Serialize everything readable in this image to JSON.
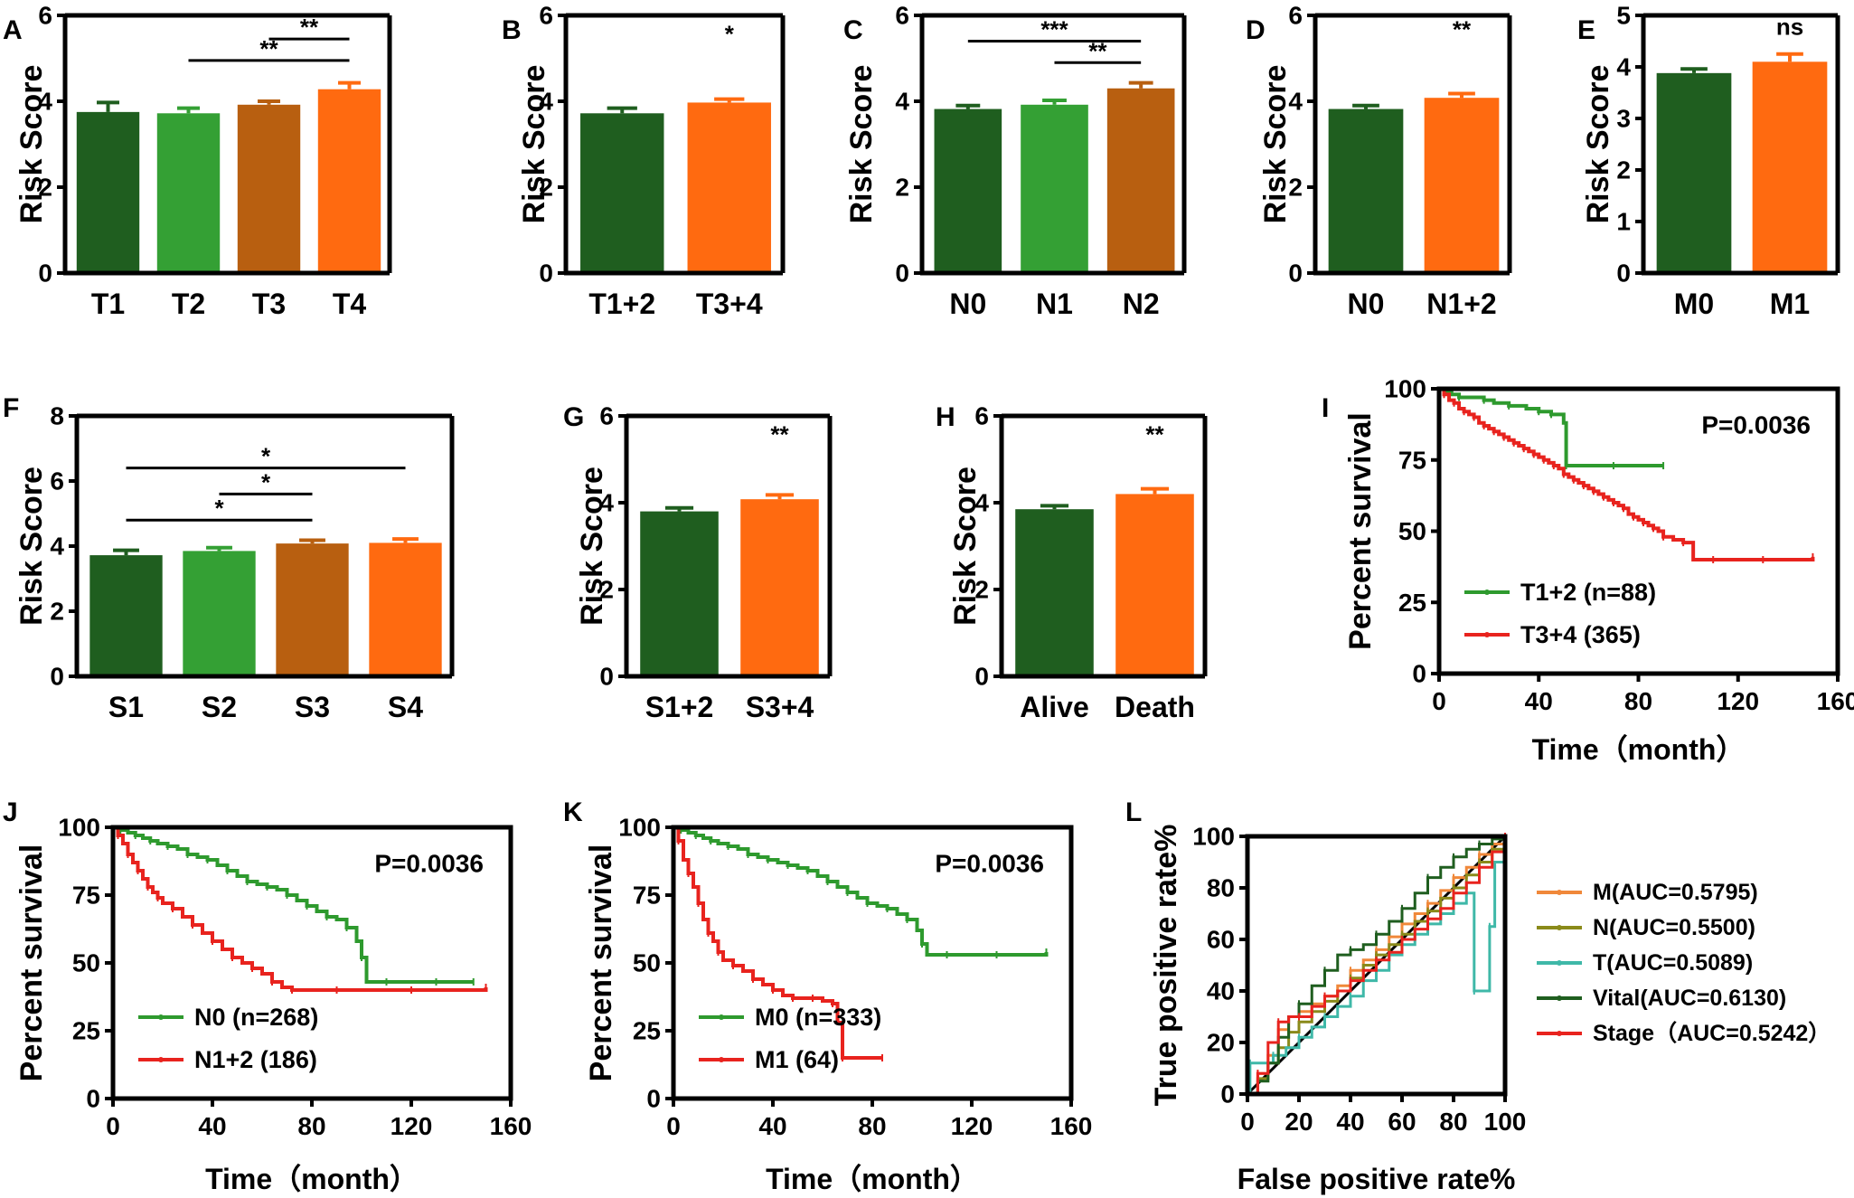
{
  "chart_data": [
    {
      "id": "A",
      "type": "bar",
      "ylabel": "Risk Score",
      "ylim": [
        0,
        6
      ],
      "yticks": [
        0,
        2,
        4,
        6
      ],
      "categories": [
        "T1",
        "T2",
        "T3",
        "T4"
      ],
      "values": [
        3.75,
        3.72,
        3.92,
        4.28
      ],
      "errors": [
        0.22,
        0.12,
        0.08,
        0.15
      ],
      "colors": [
        "#1f5e1f",
        "#34a034",
        "#b85f10",
        "#ff6a10"
      ],
      "sig": [
        {
          "from": 1,
          "to": 3,
          "label": "**",
          "level": 4.95
        },
        {
          "from": 2,
          "to": 3,
          "label": "**",
          "level": 5.45
        }
      ]
    },
    {
      "id": "B",
      "type": "bar",
      "ylabel": "Risk Score",
      "ylim": [
        0,
        6
      ],
      "yticks": [
        0,
        2,
        4,
        6
      ],
      "categories": [
        "T1+2",
        "T3+4"
      ],
      "values": [
        3.72,
        3.97
      ],
      "errors": [
        0.12,
        0.08
      ],
      "colors": [
        "#1f5e1f",
        "#ff6a10"
      ],
      "sig": [
        {
          "from": 1,
          "to": 1,
          "label": "*",
          "level": 5.3,
          "noline": true
        }
      ]
    },
    {
      "id": "C",
      "type": "bar",
      "ylabel": "Risk Score",
      "ylim": [
        0,
        6
      ],
      "yticks": [
        0,
        2,
        4,
        6
      ],
      "categories": [
        "N0",
        "N1",
        "N2"
      ],
      "values": [
        3.82,
        3.92,
        4.3
      ],
      "errors": [
        0.08,
        0.1,
        0.13
      ],
      "colors": [
        "#1f5e1f",
        "#34a034",
        "#b85f10"
      ],
      "sig": [
        {
          "from": 0,
          "to": 2,
          "label": "***",
          "level": 5.4
        },
        {
          "from": 1,
          "to": 2,
          "label": "**",
          "level": 4.9
        }
      ]
    },
    {
      "id": "D",
      "type": "bar",
      "ylabel": "Risk Score",
      "ylim": [
        0,
        6
      ],
      "yticks": [
        0,
        2,
        4,
        6
      ],
      "categories": [
        "N0",
        "N1+2"
      ],
      "values": [
        3.82,
        4.08
      ],
      "errors": [
        0.08,
        0.1
      ],
      "colors": [
        "#1f5e1f",
        "#ff6a10"
      ],
      "sig": [
        {
          "from": 1,
          "to": 1,
          "label": "**",
          "level": 5.4,
          "noline": true
        }
      ]
    },
    {
      "id": "E",
      "type": "bar",
      "ylabel": "Risk Score",
      "ylim": [
        0,
        5
      ],
      "yticks": [
        0,
        1,
        2,
        3,
        4,
        5
      ],
      "categories": [
        "M0",
        "M1"
      ],
      "values": [
        3.88,
        4.1
      ],
      "errors": [
        0.08,
        0.15
      ],
      "colors": [
        "#1f5e1f",
        "#ff6a10"
      ],
      "sig": [
        {
          "from": 1,
          "to": 1,
          "label": "ns",
          "level": 4.55,
          "noline": true
        }
      ]
    },
    {
      "id": "F",
      "type": "bar",
      "ylabel": "Risk Score",
      "ylim": [
        0,
        8
      ],
      "yticks": [
        0,
        2,
        4,
        6,
        8
      ],
      "categories": [
        "S1",
        "S2",
        "S3",
        "S4"
      ],
      "values": [
        3.72,
        3.85,
        4.08,
        4.1
      ],
      "errors": [
        0.15,
        0.1,
        0.1,
        0.12
      ],
      "colors": [
        "#1f5e1f",
        "#34a034",
        "#b85f10",
        "#ff6a10"
      ],
      "sig": [
        {
          "from": 0,
          "to": 3,
          "label": "*",
          "level": 6.4
        },
        {
          "from": 1,
          "to": 2,
          "label": "*",
          "level": 5.6
        },
        {
          "from": 0,
          "to": 2,
          "label": "*",
          "level": 4.8
        }
      ]
    },
    {
      "id": "G",
      "type": "bar",
      "ylabel": "Risk Score",
      "ylim": [
        0,
        6
      ],
      "yticks": [
        0,
        2,
        4,
        6
      ],
      "categories": [
        "S1+2",
        "S3+4"
      ],
      "values": [
        3.8,
        4.08
      ],
      "errors": [
        0.08,
        0.1
      ],
      "colors": [
        "#1f5e1f",
        "#ff6a10"
      ],
      "sig": [
        {
          "from": 1,
          "to": 1,
          "label": "**",
          "level": 5.3,
          "noline": true
        }
      ]
    },
    {
      "id": "H",
      "type": "bar",
      "ylabel": "Risk Score",
      "ylim": [
        0,
        6
      ],
      "yticks": [
        0,
        2,
        4,
        6
      ],
      "categories": [
        "Alive",
        "Death"
      ],
      "values": [
        3.85,
        4.2
      ],
      "errors": [
        0.08,
        0.12
      ],
      "colors": [
        "#1f5e1f",
        "#ff6a10"
      ],
      "sig": [
        {
          "from": 1,
          "to": 1,
          "label": "**",
          "level": 5.3,
          "noline": true
        }
      ]
    },
    {
      "id": "I",
      "type": "line",
      "subtype": "kaplan-meier",
      "ylabel": "Percent survival",
      "xlabel": "Time（month）",
      "xlim": [
        0,
        160
      ],
      "ylim": [
        0,
        100
      ],
      "xticks": [
        0,
        40,
        80,
        120,
        160
      ],
      "yticks": [
        0,
        25,
        50,
        75,
        100
      ],
      "pvalue": "P=0.0036",
      "series": [
        {
          "name": "T1+2 (n=88)",
          "color": "#2e9a2e",
          "times": [
            0,
            2,
            5,
            8,
            12,
            18,
            22,
            28,
            35,
            40,
            42,
            45,
            50,
            51,
            60,
            70,
            80,
            90
          ],
          "survival": [
            100,
            99,
            98,
            97,
            97,
            96,
            95,
            94,
            93,
            92,
            92,
            91,
            88,
            73,
            73,
            73,
            73,
            73
          ]
        },
        {
          "name": "T3+4 (365)",
          "color": "#e8231e",
          "times": [
            0,
            2,
            4,
            6,
            8,
            10,
            12,
            14,
            16,
            18,
            20,
            22,
            24,
            26,
            28,
            30,
            32,
            34,
            36,
            38,
            40,
            42,
            44,
            46,
            48,
            50,
            52,
            54,
            56,
            58,
            60,
            62,
            64,
            66,
            68,
            70,
            72,
            74,
            76,
            78,
            80,
            82,
            84,
            86,
            88,
            90,
            94,
            98,
            102,
            110,
            120,
            130,
            140,
            150
          ],
          "survival": [
            100,
            98,
            96,
            95,
            93,
            92,
            91,
            90,
            88,
            87,
            86,
            85,
            84,
            83,
            82,
            81,
            80,
            79,
            78,
            77,
            76,
            75,
            74,
            73,
            72,
            70,
            69,
            68,
            67,
            66,
            65,
            64,
            63,
            62,
            61,
            60,
            59,
            58,
            56,
            55,
            54,
            53,
            52,
            51,
            50,
            48,
            47,
            46,
            40,
            40,
            40,
            40,
            40,
            41
          ]
        }
      ]
    },
    {
      "id": "J",
      "type": "line",
      "subtype": "kaplan-meier",
      "ylabel": "Percent survival",
      "xlabel": "Time（month）",
      "xlim": [
        0,
        160
      ],
      "ylim": [
        0,
        100
      ],
      "xticks": [
        0,
        40,
        80,
        120,
        160
      ],
      "yticks": [
        0,
        25,
        50,
        75,
        100
      ],
      "pvalue": "P=0.0036",
      "series": [
        {
          "name": "N0 (n=268)",
          "color": "#2e9a2e",
          "times": [
            0,
            3,
            6,
            9,
            12,
            15,
            18,
            22,
            26,
            30,
            34,
            38,
            42,
            46,
            50,
            54,
            58,
            62,
            66,
            70,
            74,
            78,
            82,
            86,
            90,
            94,
            98,
            100,
            102,
            110,
            120,
            130,
            140,
            145
          ],
          "survival": [
            100,
            99,
            98,
            97,
            96,
            95,
            94,
            93,
            92,
            90,
            89,
            88,
            86,
            84,
            82,
            80,
            79,
            78,
            77,
            75,
            73,
            71,
            69,
            67,
            66,
            63,
            58,
            52,
            43,
            43,
            43,
            43,
            43,
            43
          ]
        },
        {
          "name": "N1+2 (186)",
          "color": "#e8231e",
          "times": [
            0,
            2,
            4,
            6,
            8,
            10,
            12,
            14,
            16,
            18,
            20,
            24,
            28,
            32,
            36,
            40,
            44,
            48,
            52,
            56,
            60,
            64,
            68,
            72,
            80,
            90,
            100,
            120,
            140,
            150
          ],
          "survival": [
            100,
            97,
            94,
            90,
            87,
            84,
            81,
            78,
            76,
            74,
            72,
            70,
            67,
            64,
            61,
            58,
            55,
            52,
            50,
            48,
            46,
            43,
            41,
            40,
            40,
            40,
            40,
            40,
            40,
            41
          ]
        }
      ]
    },
    {
      "id": "K",
      "type": "line",
      "subtype": "kaplan-meier",
      "ylabel": "Percent survival",
      "xlabel": "Time（month）",
      "xlim": [
        0,
        160
      ],
      "ylim": [
        0,
        100
      ],
      "xticks": [
        0,
        40,
        80,
        120,
        160
      ],
      "yticks": [
        0,
        25,
        50,
        75,
        100
      ],
      "pvalue": "P=0.0036",
      "series": [
        {
          "name": "M0 (n=333)",
          "color": "#2e9a2e",
          "times": [
            0,
            3,
            6,
            9,
            12,
            15,
            18,
            22,
            26,
            30,
            34,
            38,
            42,
            46,
            50,
            54,
            58,
            62,
            66,
            70,
            74,
            78,
            82,
            86,
            90,
            94,
            98,
            100,
            102,
            110,
            120,
            130,
            140,
            150
          ],
          "survival": [
            100,
            99,
            98,
            97,
            96,
            95,
            94,
            93,
            92,
            90,
            89,
            88,
            87,
            86,
            85,
            84,
            82,
            80,
            78,
            76,
            74,
            72,
            71,
            70,
            68,
            66,
            62,
            57,
            53,
            53,
            53,
            53,
            53,
            54
          ]
        },
        {
          "name": "M1 (64)",
          "color": "#e8231e",
          "times": [
            0,
            2,
            4,
            6,
            8,
            10,
            12,
            14,
            16,
            18,
            20,
            24,
            28,
            32,
            36,
            40,
            44,
            48,
            52,
            56,
            60,
            64,
            66,
            68,
            75,
            84
          ],
          "survival": [
            100,
            95,
            88,
            83,
            78,
            72,
            66,
            61,
            58,
            54,
            51,
            49,
            47,
            44,
            42,
            40,
            38,
            37,
            37,
            37,
            36,
            35,
            28,
            15,
            15,
            15
          ]
        }
      ]
    },
    {
      "id": "L",
      "type": "line",
      "subtype": "roc",
      "ylabel": "True positive rate%",
      "xlabel": "False positive rate%",
      "xlim": [
        0,
        100
      ],
      "ylim": [
        0,
        100
      ],
      "xticks": [
        0,
        20,
        40,
        60,
        80,
        100
      ],
      "yticks": [
        0,
        20,
        40,
        60,
        80,
        100
      ],
      "series": [
        {
          "name": "M(AUC=0.5795)",
          "color": "#f0883a",
          "x": [
            0,
            4,
            8,
            12,
            16,
            20,
            25,
            30,
            35,
            40,
            45,
            50,
            55,
            60,
            65,
            70,
            75,
            80,
            85,
            90,
            95,
            100
          ],
          "y": [
            0,
            8,
            15,
            25,
            30,
            32,
            35,
            38,
            42,
            48,
            52,
            56,
            61,
            66,
            70,
            74,
            79,
            84,
            88,
            93,
            97,
            100
          ]
        },
        {
          "name": "N(AUC=0.5500)",
          "color": "#8a8a1a",
          "x": [
            0,
            4,
            8,
            12,
            16,
            20,
            25,
            30,
            35,
            40,
            45,
            50,
            55,
            60,
            65,
            70,
            75,
            80,
            85,
            90,
            95,
            100
          ],
          "y": [
            0,
            6,
            12,
            18,
            24,
            28,
            32,
            36,
            40,
            45,
            50,
            54,
            58,
            62,
            67,
            71,
            76,
            80,
            85,
            90,
            95,
            100
          ]
        },
        {
          "name": "T(AUC=0.5089)",
          "color": "#3fb8a8",
          "x": [
            0,
            1,
            6,
            10,
            15,
            20,
            25,
            30,
            35,
            40,
            45,
            50,
            55,
            60,
            65,
            70,
            75,
            80,
            85,
            88,
            92,
            94,
            96,
            100
          ],
          "y": [
            0,
            12,
            12,
            15,
            18,
            22,
            26,
            30,
            34,
            38,
            44,
            48,
            54,
            58,
            62,
            66,
            70,
            74,
            78,
            40,
            40,
            65,
            90,
            100
          ]
        },
        {
          "name": "Vital(AUC=0.6130)",
          "color": "#1f5e1f",
          "x": [
            0,
            4,
            8,
            12,
            16,
            20,
            25,
            30,
            35,
            40,
            45,
            50,
            55,
            60,
            65,
            70,
            75,
            80,
            85,
            90,
            95,
            100
          ],
          "y": [
            0,
            5,
            12,
            22,
            30,
            35,
            42,
            48,
            54,
            56,
            58,
            62,
            67,
            72,
            78,
            84,
            88,
            92,
            95,
            97,
            99,
            100
          ]
        },
        {
          "name": "Stage（AUC=0.5242）",
          "color": "#e8231e",
          "x": [
            0,
            4,
            8,
            12,
            16,
            20,
            25,
            30,
            35,
            40,
            45,
            50,
            55,
            60,
            65,
            70,
            75,
            80,
            85,
            90,
            95,
            100
          ],
          "y": [
            0,
            8,
            20,
            28,
            30,
            30,
            34,
            38,
            40,
            44,
            48,
            52,
            55,
            60,
            64,
            68,
            72,
            78,
            82,
            88,
            94,
            100
          ]
        }
      ]
    }
  ]
}
